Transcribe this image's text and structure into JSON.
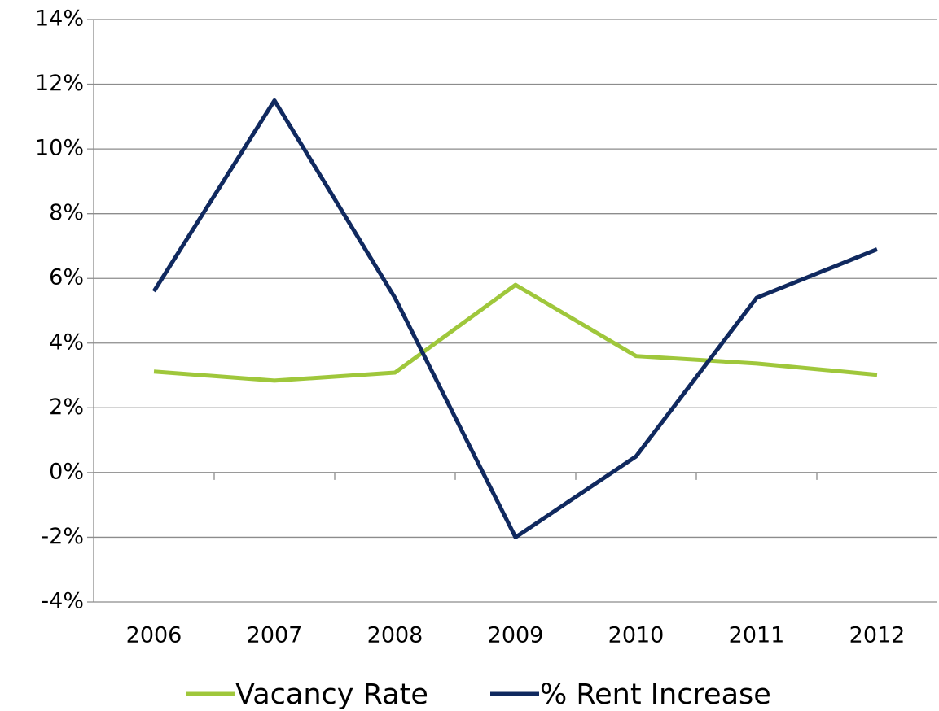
{
  "chart_data": {
    "type": "line",
    "categories": [
      "2006",
      "2007",
      "2008",
      "2009",
      "2010",
      "2011",
      "2012"
    ],
    "series": [
      {
        "name": "Vacancy Rate",
        "color": "#9fc73b",
        "values": [
          3.12,
          2.84,
          3.09,
          5.8,
          3.6,
          3.37,
          3.02
        ]
      },
      {
        "name": "% Rent Increase",
        "color": "#10295f",
        "values": [
          5.6,
          11.5,
          5.4,
          -2,
          0.5,
          5.4,
          6.9
        ]
      }
    ],
    "ylim": [
      -4,
      14
    ],
    "yticks": [
      {
        "value": -4,
        "label": "-4%"
      },
      {
        "value": -2,
        "label": "-2%"
      },
      {
        "value": 0,
        "label": "0%"
      },
      {
        "value": 2,
        "label": "2%"
      },
      {
        "value": 4,
        "label": "4%"
      },
      {
        "value": 6,
        "label": "6%"
      },
      {
        "value": 8,
        "label": "8%"
      },
      {
        "value": 10,
        "label": "10%"
      },
      {
        "value": 12,
        "label": "12%"
      },
      {
        "value": 14,
        "label": "14%"
      }
    ],
    "grid": true,
    "legend": "bottom"
  }
}
